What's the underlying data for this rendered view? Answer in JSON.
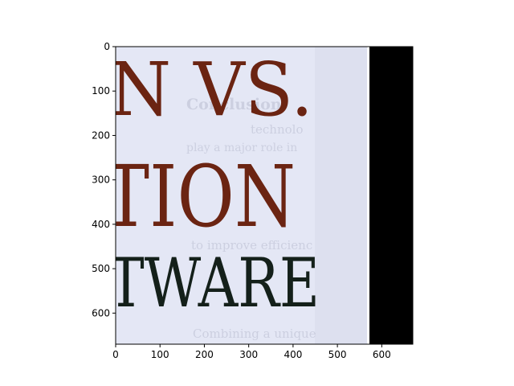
{
  "chart_data": {
    "type": "image",
    "xlim": [
      0,
      670
    ],
    "ylim": [
      670,
      0
    ],
    "x_ticks": [
      0,
      100,
      200,
      300,
      400,
      500,
      600
    ],
    "y_ticks": [
      0,
      100,
      200,
      300,
      400,
      500,
      600
    ],
    "x_tick_labels": [
      "0",
      "100",
      "200",
      "300",
      "400",
      "500",
      "600"
    ],
    "y_tick_labels": [
      "0",
      "100",
      "200",
      "300",
      "400",
      "500",
      "600"
    ],
    "image_content": {
      "headline_lines": [
        "N VS.",
        "TION",
        "TWARE"
      ],
      "background_text": [
        "Conclusion",
        "technolo",
        "play a major role in",
        "to improve efficienc",
        "Combining a unique"
      ],
      "colors": {
        "page": "#e4e7f5",
        "headline_red": "#6b2412",
        "headline_dark": "#14201a",
        "black_region": "#000000",
        "ghost_text": "#b9bdd0"
      }
    }
  }
}
